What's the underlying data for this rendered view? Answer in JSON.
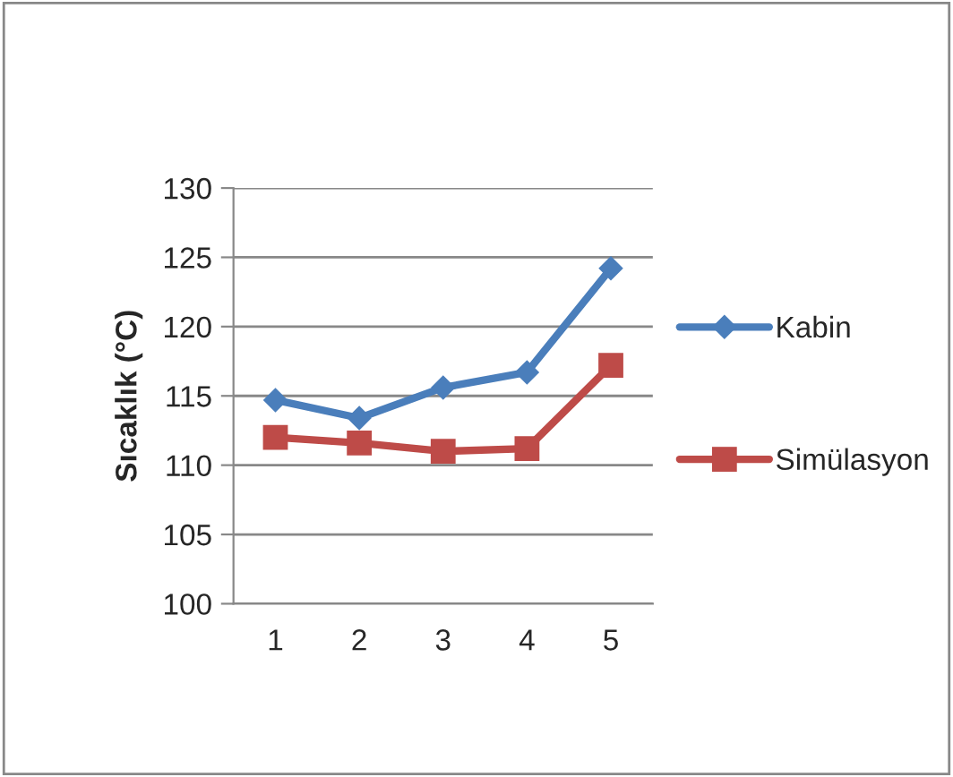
{
  "chart_data": {
    "type": "line",
    "ylabel": "Sıcaklık (°C)",
    "categories": [
      "1",
      "2",
      "3",
      "4",
      "5"
    ],
    "series": [
      {
        "name": "Kabin",
        "color": "#4a7ebb",
        "marker": "diamond",
        "values": [
          114.7,
          113.4,
          115.6,
          116.7,
          124.2
        ]
      },
      {
        "name": "Simülasyon",
        "color": "#be4b48",
        "marker": "square",
        "values": [
          112.0,
          111.6,
          111.0,
          111.2,
          117.2
        ]
      }
    ],
    "ylim": [
      100,
      130
    ],
    "yticks": [
      100,
      105,
      110,
      115,
      120,
      125,
      130
    ],
    "grid": "y",
    "legend": "right"
  }
}
